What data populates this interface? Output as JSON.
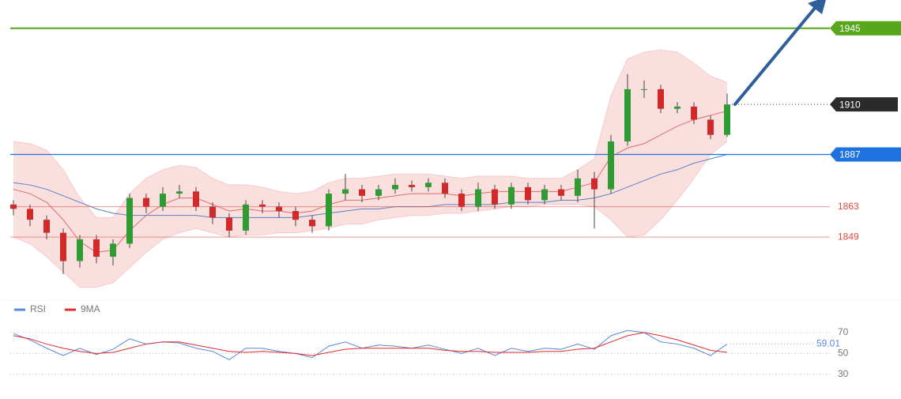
{
  "chart_data": [
    {
      "type": "candlestick",
      "ylim": [
        1820,
        1958
      ],
      "up_color": "#2e9b33",
      "down_color": "#d22a2a",
      "open": [
        1864,
        1862,
        1857,
        1851,
        1838,
        1848,
        1840,
        1846,
        1867,
        1863,
        1869,
        1870,
        1863,
        1858,
        1852,
        1864,
        1863,
        1861,
        1857,
        1854,
        1869,
        1871,
        1868,
        1871,
        1873,
        1872,
        1874,
        1869,
        1863,
        1871,
        1864,
        1872,
        1866,
        1871,
        1868,
        1876,
        1871,
        1893,
        1917,
        1917,
        1908,
        1909,
        1903,
        1896
      ],
      "high": [
        1866,
        1864,
        1859,
        1853,
        1850,
        1850,
        1848,
        1869,
        1869,
        1872,
        1873,
        1872,
        1865,
        1860,
        1866,
        1866,
        1865,
        1863,
        1859,
        1871,
        1878,
        1873,
        1873,
        1876,
        1875,
        1876,
        1876,
        1871,
        1874,
        1873,
        1874,
        1874,
        1873,
        1873,
        1880,
        1879,
        1896,
        1924,
        1921,
        1919,
        1911,
        1911,
        1905,
        1915
      ],
      "low": [
        1859,
        1854,
        1848,
        1832,
        1835,
        1837,
        1836,
        1844,
        1860,
        1861,
        1867,
        1861,
        1855,
        1849,
        1850,
        1860,
        1858,
        1854,
        1851,
        1852,
        1866,
        1865,
        1866,
        1869,
        1870,
        1870,
        1867,
        1861,
        1861,
        1862,
        1862,
        1864,
        1864,
        1866,
        1865,
        1853,
        1869,
        1891,
        1913,
        1906,
        1906,
        1901,
        1894,
        1895
      ],
      "close": [
        1862,
        1857,
        1851,
        1838,
        1848,
        1840,
        1846,
        1867,
        1863,
        1869,
        1870,
        1863,
        1858,
        1852,
        1864,
        1863,
        1861,
        1857,
        1854,
        1869,
        1871,
        1868,
        1871,
        1873,
        1872,
        1874,
        1869,
        1863,
        1871,
        1864,
        1872,
        1866,
        1871,
        1868,
        1876,
        1871,
        1893,
        1917,
        1917,
        1908,
        1909,
        1903,
        1896,
        1910
      ],
      "bands": {
        "fill": "#f7c9c9",
        "upper": [
          1893,
          1892,
          1889,
          1880,
          1867,
          1858,
          1858,
          1869,
          1876,
          1880,
          1882,
          1881,
          1876,
          1873,
          1873,
          1872,
          1870,
          1869,
          1870,
          1874,
          1876,
          1876,
          1877,
          1878,
          1878,
          1878,
          1877,
          1876,
          1877,
          1877,
          1877,
          1876,
          1876,
          1876,
          1880,
          1885,
          1914,
          1931,
          1934,
          1935,
          1934,
          1929,
          1923,
          1920
        ],
        "lower": [
          1849,
          1846,
          1840,
          1833,
          1826,
          1826,
          1828,
          1835,
          1842,
          1848,
          1851,
          1853,
          1851,
          1849,
          1850,
          1850,
          1851,
          1851,
          1852,
          1853,
          1855,
          1855,
          1857,
          1858,
          1859,
          1859,
          1860,
          1860,
          1861,
          1862,
          1863,
          1863,
          1864,
          1864,
          1864,
          1863,
          1857,
          1849,
          1850,
          1857,
          1866,
          1876,
          1887,
          1893
        ],
        "middle": [
          1871,
          1869,
          1865,
          1857,
          1847,
          1842,
          1843,
          1852,
          1859,
          1864,
          1867,
          1867,
          1864,
          1861,
          1862,
          1861,
          1861,
          1860,
          1861,
          1864,
          1866,
          1866,
          1867,
          1868,
          1869,
          1869,
          1869,
          1868,
          1869,
          1870,
          1870,
          1870,
          1870,
          1870,
          1872,
          1874,
          1886,
          1890,
          1892,
          1896,
          1900,
          1903,
          1905,
          1907
        ],
        "middle_color": "#e46a6a"
      },
      "ma_slow": {
        "color": "#5b7fc4",
        "values": [
          1874,
          1873,
          1871,
          1868,
          1865,
          1862,
          1860,
          1859,
          1859,
          1859,
          1859,
          1859,
          1858,
          1858,
          1858,
          1858,
          1858,
          1858,
          1859,
          1860,
          1861,
          1862,
          1862,
          1863,
          1863,
          1863,
          1864,
          1864,
          1864,
          1864,
          1865,
          1865,
          1865,
          1866,
          1866,
          1867,
          1869,
          1872,
          1875,
          1878,
          1880,
          1883,
          1885,
          1887
        ]
      },
      "levels": [
        {
          "value": 1945,
          "color": "#57a61c",
          "style": "box"
        },
        {
          "value": 1910,
          "color": "#2b2b2b",
          "style": "current"
        },
        {
          "value": 1887,
          "color": "#1d72e0",
          "style": "box"
        },
        {
          "value": 1863,
          "color": "#e0473f",
          "style": "text"
        },
        {
          "value": 1849,
          "color": "#e0473f",
          "style": "text"
        }
      ]
    },
    {
      "type": "line",
      "ylim": [
        14,
        82
      ],
      "yticks": [
        70,
        50,
        30
      ],
      "series": [
        {
          "name": "RSI",
          "color": "#5b86de",
          "values": [
            69,
            63,
            55,
            48,
            55,
            49,
            54,
            64,
            59,
            61,
            60,
            55,
            52,
            44,
            55,
            55,
            52,
            50,
            46,
            57,
            61,
            55,
            58,
            57,
            55,
            58,
            54,
            50,
            55,
            48,
            55,
            52,
            55,
            54,
            59,
            54,
            67,
            72,
            70,
            61,
            59,
            55,
            48,
            59.01
          ]
        },
        {
          "name": "9MA",
          "color": "#e02c2c",
          "values": [
            67,
            64,
            59,
            55,
            52,
            50,
            51,
            55,
            59,
            61,
            61,
            58,
            55,
            52,
            51,
            52,
            51,
            50,
            48,
            51,
            54,
            55,
            55,
            55,
            55,
            55,
            53,
            52,
            52,
            51,
            51,
            51,
            52,
            52,
            54,
            55,
            61,
            67,
            70,
            67,
            63,
            58,
            53,
            51
          ]
        }
      ]
    }
  ]
}
